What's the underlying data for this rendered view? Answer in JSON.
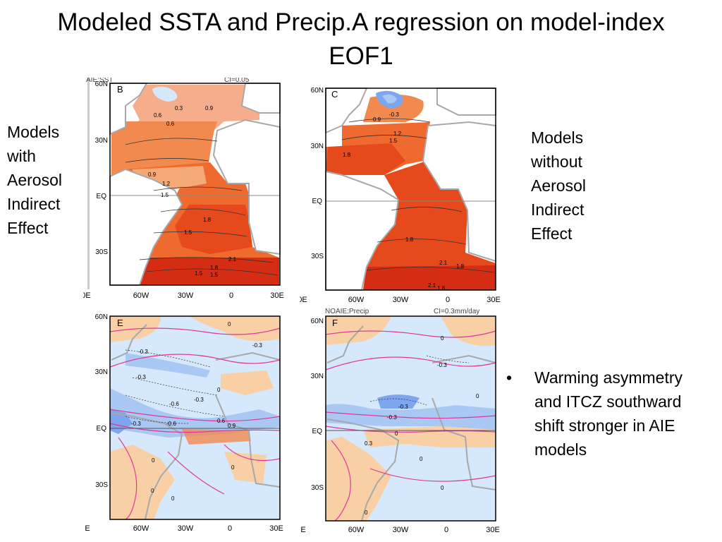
{
  "title": {
    "line1": "Modeled SSTA and Precip.A regression on model-index",
    "line2": "EOF1"
  },
  "left_label": {
    "lines": [
      "Models",
      "with",
      "Aerosol",
      "Indirect",
      "Effect"
    ]
  },
  "right_label": {
    "lines": [
      "Models",
      "without",
      "Aerosol",
      "Indirect",
      "Effect"
    ]
  },
  "bullet": {
    "marker": "•",
    "lines": [
      "Warming asymmetry",
      "and ITCZ southward",
      "shift stronger in AIE",
      "models"
    ]
  },
  "panels": {
    "B": {
      "letter": "B",
      "header_left": "AIE:SST",
      "header_right": "CI=0.05",
      "lat_labels": [
        "60N",
        "30N",
        "EQ",
        "30S"
      ],
      "lon_labels": [
        "0E",
        "60W",
        "30W",
        "0",
        "30E"
      ],
      "contour_labels": [
        "0.3",
        "0.6",
        "0.6",
        "0.9",
        "0.9",
        "1.2",
        "1.5",
        "1.8",
        "1.5",
        "2.1",
        "1.8",
        "1.5",
        "1.5"
      ]
    },
    "C": {
      "letter": "C",
      "lat_labels": [
        "60N",
        "30N",
        "EQ",
        "30S"
      ],
      "lon_labels": [
        "0E",
        "60W",
        "30W",
        "0",
        "30E"
      ],
      "contour_labels": [
        "-0.3",
        "0.9",
        "1.2",
        "1.5",
        "1.8",
        "1.8",
        "2.1",
        "1.8",
        "2.1",
        "1.8"
      ]
    },
    "E": {
      "letter": "E",
      "lat_labels": [
        "60N",
        "30N",
        "EQ",
        "30S"
      ],
      "lon_labels": [
        "E",
        "60W",
        "30W",
        "0",
        "30E"
      ],
      "contour_labels": [
        "-0.3",
        "-0.3",
        "-0.3",
        "-0.6",
        "-0.3",
        "-0.3",
        "-0.6",
        "0.6",
        "0.9",
        "0",
        "0",
        "0",
        "0",
        "0",
        "0"
      ]
    },
    "F": {
      "letter": "F",
      "header_left": "NOAIE:Precip",
      "header_right": "CI=0.3mm/day",
      "lat_labels": [
        "60N",
        "30N",
        "EQ",
        "30S"
      ],
      "lon_labels": [
        "E",
        "60W",
        "30W",
        "0",
        "30E"
      ],
      "contour_labels": [
        "-0.3",
        "-0.3",
        "-0.3",
        "0.3",
        "0",
        "0",
        "0",
        "0",
        "0",
        "0"
      ]
    }
  },
  "colors": {
    "land": "#ffffff",
    "coast": "#a8a8a8",
    "ssta_1": "#f5a977",
    "ssta_2": "#f28a50",
    "ssta_3": "#ee6a2e",
    "ssta_4": "#e64a1c",
    "ssta_5": "#d42d14",
    "precip_pos": "#f9d0a6",
    "precip_neg": "#d6e8fb",
    "precip_neg2": "#a9c8f4",
    "precip_neg3": "#7ea6ee",
    "magenta": "#e0389a"
  }
}
